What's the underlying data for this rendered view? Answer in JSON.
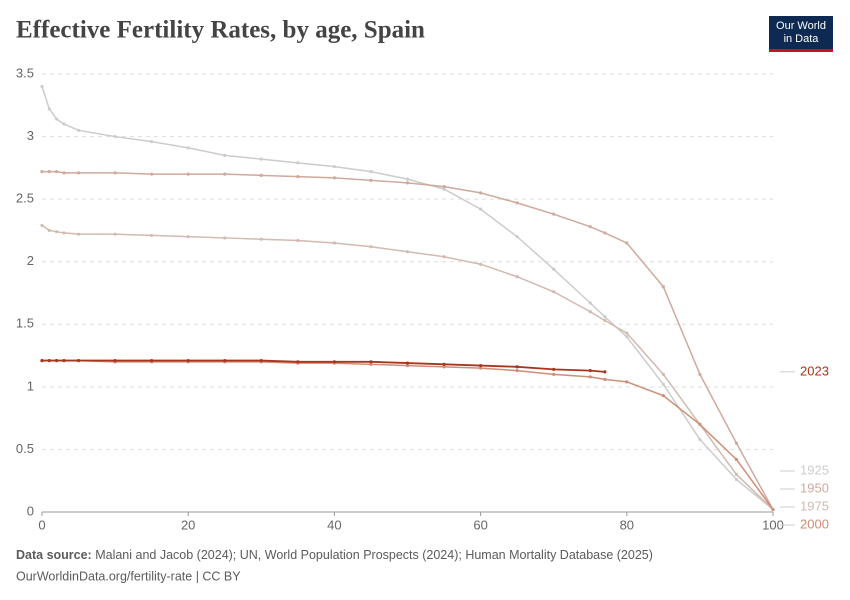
{
  "chart_data": {
    "type": "line",
    "title": "Effective Fertility Rates, by age, Spain",
    "logo": [
      "Our World",
      "in Data"
    ],
    "source_label": "Data source:",
    "source": "Malani and Jacob (2024); UN, World Population Prospects (2024); Human Mortality Database (2025)",
    "url": "OurWorldinData.org/fertility-rate | CC BY",
    "x": [
      0,
      1,
      2,
      3,
      5,
      10,
      15,
      20,
      25,
      30,
      35,
      40,
      45,
      50,
      55,
      60,
      65,
      70,
      75,
      77,
      80,
      85,
      90,
      95,
      100
    ],
    "xlim": [
      0,
      100
    ],
    "xticks": [
      0,
      20,
      40,
      60,
      80,
      100
    ],
    "ylim": [
      0,
      3.5
    ],
    "yticks": [
      0,
      0.5,
      1,
      1.5,
      2,
      2.5,
      3,
      3.5
    ],
    "grid": true,
    "series": [
      {
        "name": "1925",
        "color": "#cccccc",
        "values": [
          3.4,
          3.22,
          3.14,
          3.1,
          3.05,
          3.0,
          2.96,
          2.91,
          2.85,
          2.82,
          2.79,
          2.76,
          2.72,
          2.66,
          2.58,
          2.42,
          2.2,
          1.94,
          1.67,
          1.56,
          1.4,
          1.02,
          0.58,
          0.26,
          0.02
        ]
      },
      {
        "name": "1950",
        "color": "#cfa99c",
        "values": [
          2.72,
          2.72,
          2.72,
          2.71,
          2.71,
          2.71,
          2.7,
          2.7,
          2.7,
          2.69,
          2.68,
          2.67,
          2.65,
          2.63,
          2.6,
          2.55,
          2.47,
          2.38,
          2.28,
          2.23,
          2.15,
          1.8,
          1.1,
          0.55,
          0.02
        ]
      },
      {
        "name": "1975",
        "color": "#d2bab1",
        "values": [
          2.29,
          2.25,
          2.24,
          2.23,
          2.22,
          2.22,
          2.21,
          2.2,
          2.19,
          2.18,
          2.17,
          2.15,
          2.12,
          2.08,
          2.04,
          1.98,
          1.88,
          1.76,
          1.6,
          1.53,
          1.43,
          1.1,
          0.7,
          0.3,
          0.02
        ]
      },
      {
        "name": "2000",
        "color": "#cf8e76",
        "values": [
          1.21,
          1.21,
          1.21,
          1.21,
          1.21,
          1.2,
          1.2,
          1.2,
          1.2,
          1.2,
          1.19,
          1.19,
          1.18,
          1.17,
          1.16,
          1.15,
          1.13,
          1.1,
          1.08,
          1.06,
          1.04,
          0.93,
          0.7,
          0.42,
          0.02
        ]
      },
      {
        "name": "2023",
        "color": "#a8361d",
        "values": [
          1.21,
          1.21,
          1.21,
          1.21,
          1.21,
          1.21,
          1.21,
          1.21,
          1.21,
          1.21,
          1.2,
          1.2,
          1.2,
          1.19,
          1.18,
          1.17,
          1.16,
          1.14,
          1.13,
          1.12,
          null,
          null,
          null,
          null,
          null
        ]
      }
    ]
  }
}
